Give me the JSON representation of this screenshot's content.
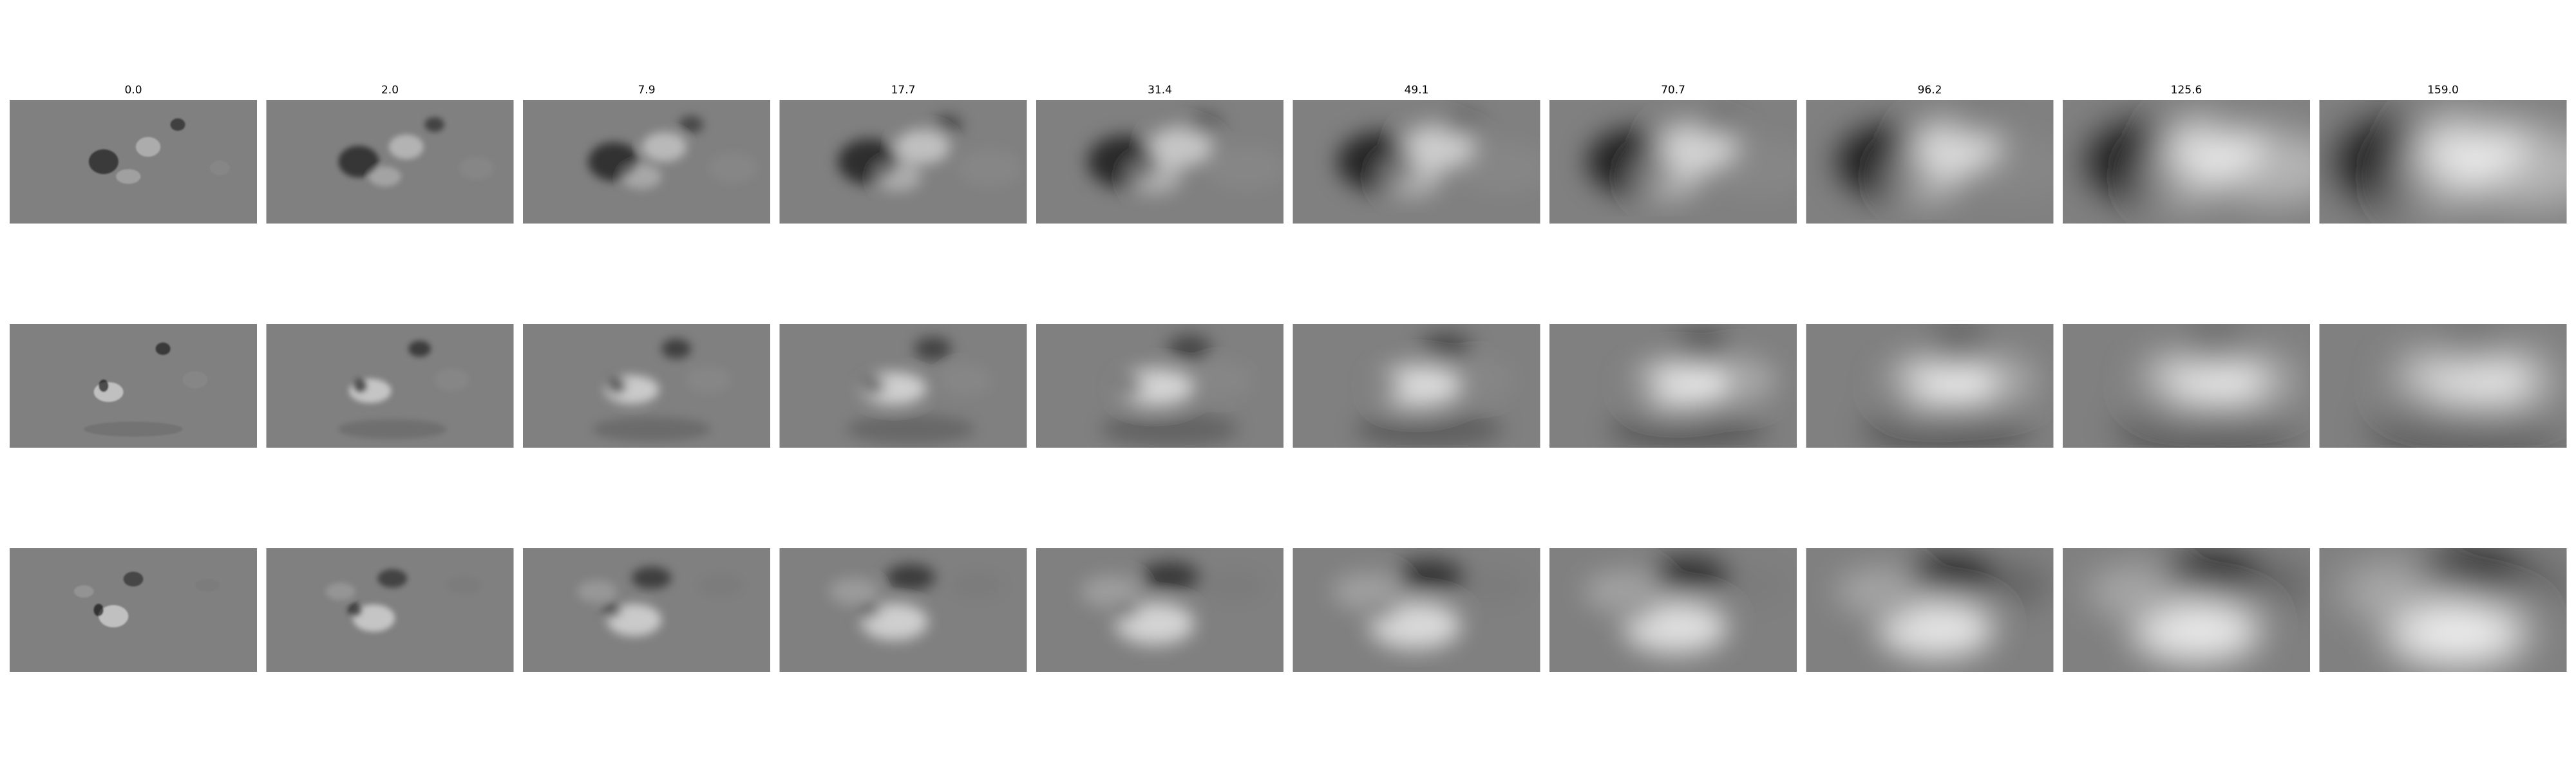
{
  "column_labels": [
    "0.0",
    "2.0",
    "7.9",
    "17.7",
    "31.4",
    "49.1",
    "70.7",
    "96.2",
    "125.6",
    "159.0"
  ],
  "rows": [
    {
      "panel_name": "row-1-panel"
    },
    {
      "panel_name": "row-2-panel"
    },
    {
      "panel_name": "row-3-panel"
    }
  ],
  "colors": {
    "background": "#ffffff",
    "panel_base": "#808080",
    "bright": "#ffffff",
    "dark": "#000000",
    "label_text": "#000000"
  },
  "colormap": "gray"
}
